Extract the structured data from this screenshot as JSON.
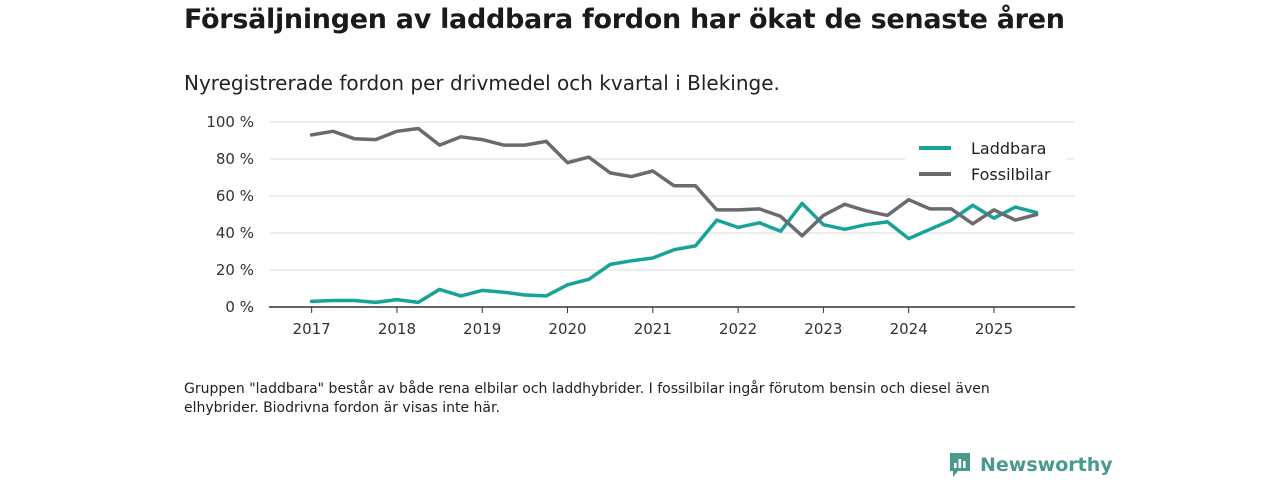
{
  "header": {
    "title": "Försäljningen av laddbara fordon har ökat de senaste åren",
    "subtitle": "Nyregistrerade fordon per drivmedel och kvartal i Blekinge."
  },
  "footer": {
    "note": "Gruppen \"laddbara\" består av både rena elbilar och laddhybrider. I fossilbilar ingår förutom bensin och diesel även elhybrider. Biodrivna fordon är visas inte här.",
    "brand": "Newsworthy"
  },
  "colors": {
    "laddbara": "#17a398",
    "fossil": "#6b6b6f",
    "grid": "#dddddd",
    "axis": "#333333",
    "brand": "#4a9a8c"
  },
  "chart_data": {
    "type": "line",
    "title": "Nyregistrerade fordon per drivmedel och kvartal i Blekinge.",
    "xlabel": "",
    "ylabel": "",
    "ylim": [
      0,
      100
    ],
    "y_ticks": [
      0,
      20,
      40,
      60,
      80,
      100
    ],
    "y_tick_labels": [
      "0 %",
      "20 %",
      "40 %",
      "60 %",
      "80 %",
      "100 %"
    ],
    "x_range": [
      2016.5,
      2025.95
    ],
    "x_ticks": [
      2017,
      2018,
      2019,
      2020,
      2021,
      2022,
      2023,
      2024,
      2025
    ],
    "x_tick_labels": [
      "2017",
      "2018",
      "2019",
      "2020",
      "2021",
      "2022",
      "2023",
      "2024",
      "2025"
    ],
    "legend_position": "top-right",
    "x": [
      2017.0,
      2017.25,
      2017.5,
      2017.75,
      2018.0,
      2018.25,
      2018.5,
      2018.75,
      2019.0,
      2019.25,
      2019.5,
      2019.75,
      2020.0,
      2020.25,
      2020.5,
      2020.75,
      2021.0,
      2021.25,
      2021.5,
      2021.75,
      2022.0,
      2022.25,
      2022.5,
      2022.75,
      2023.0,
      2023.25,
      2023.5,
      2023.75,
      2024.0,
      2024.25,
      2024.5,
      2024.75,
      2025.0,
      2025.25,
      2025.5
    ],
    "series": [
      {
        "name": "Laddbara",
        "color": "#17a398",
        "values": [
          3,
          3.5,
          3.5,
          2.5,
          4,
          2.5,
          9.5,
          6,
          9,
          8,
          6.5,
          6,
          12,
          15,
          23,
          25,
          26.5,
          31,
          33,
          47,
          43,
          45.5,
          41,
          56,
          44.5,
          42,
          44.5,
          46,
          37,
          42,
          47,
          55,
          48,
          54,
          51
        ]
      },
      {
        "name": "Fossilbilar",
        "color": "#6b6b6f",
        "values": [
          93,
          95,
          91,
          90.5,
          95,
          96.5,
          87.5,
          92,
          90.5,
          87.5,
          87.5,
          89.5,
          78,
          81,
          72.5,
          70.5,
          73.5,
          65.5,
          65.5,
          52.5,
          52.5,
          53,
          49,
          38.5,
          49.5,
          55.5,
          52,
          49.5,
          58,
          53,
          53,
          45,
          52.5,
          47,
          50
        ]
      }
    ]
  }
}
